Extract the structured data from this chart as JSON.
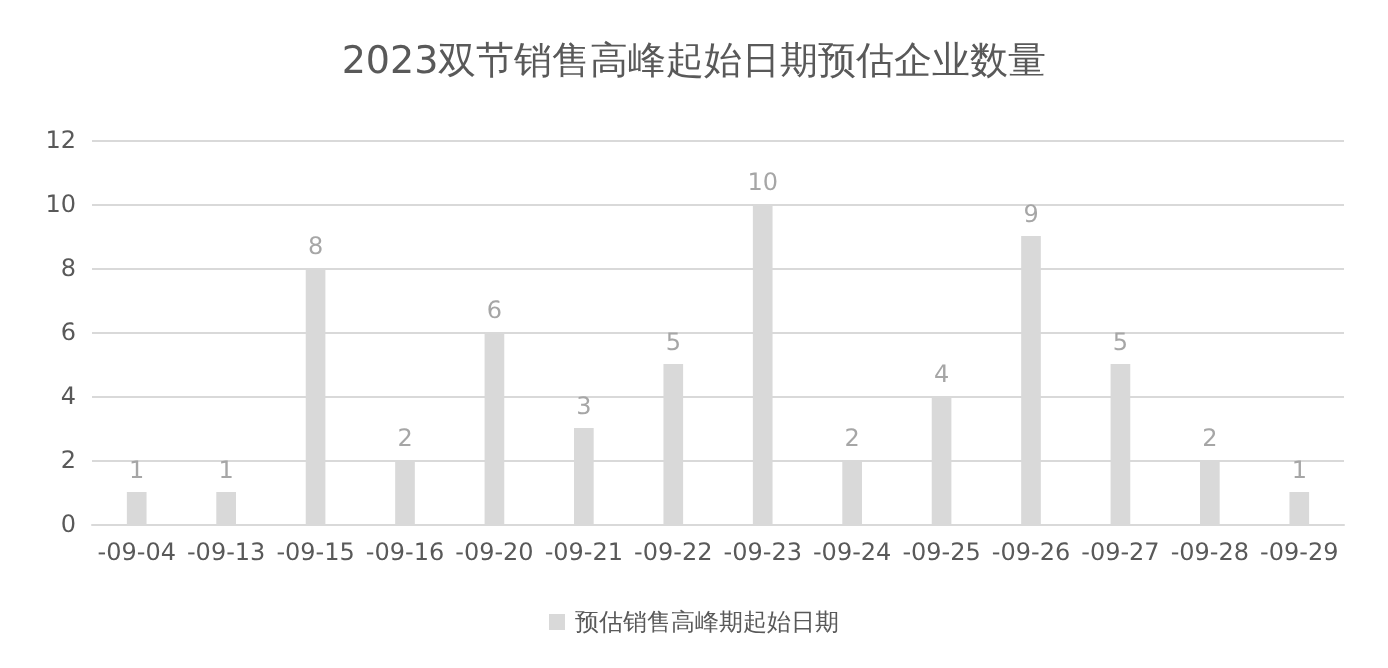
{
  "chart_data": {
    "type": "bar",
    "title": "2023双节销售高峰起始日期预估企业数量",
    "categories": [
      "-09-04",
      "-09-13",
      "-09-15",
      "-09-16",
      "-09-20",
      "-09-21",
      "-09-22",
      "-09-23",
      "-09-24",
      "-09-25",
      "-09-26",
      "-09-27",
      "-09-28",
      "-09-29"
    ],
    "series": [
      {
        "name": "预估销售高峰期起始日期",
        "color": "#d9d9d9",
        "values": [
          1,
          1,
          8,
          2,
          6,
          3,
          5,
          10,
          2,
          4,
          9,
          5,
          2,
          1
        ]
      }
    ],
    "ylim": [
      0,
      12
    ],
    "yticks": [
      0,
      2,
      4,
      6,
      8,
      10,
      12
    ],
    "grid": "y",
    "legend": "bottom",
    "data_labels": true
  }
}
